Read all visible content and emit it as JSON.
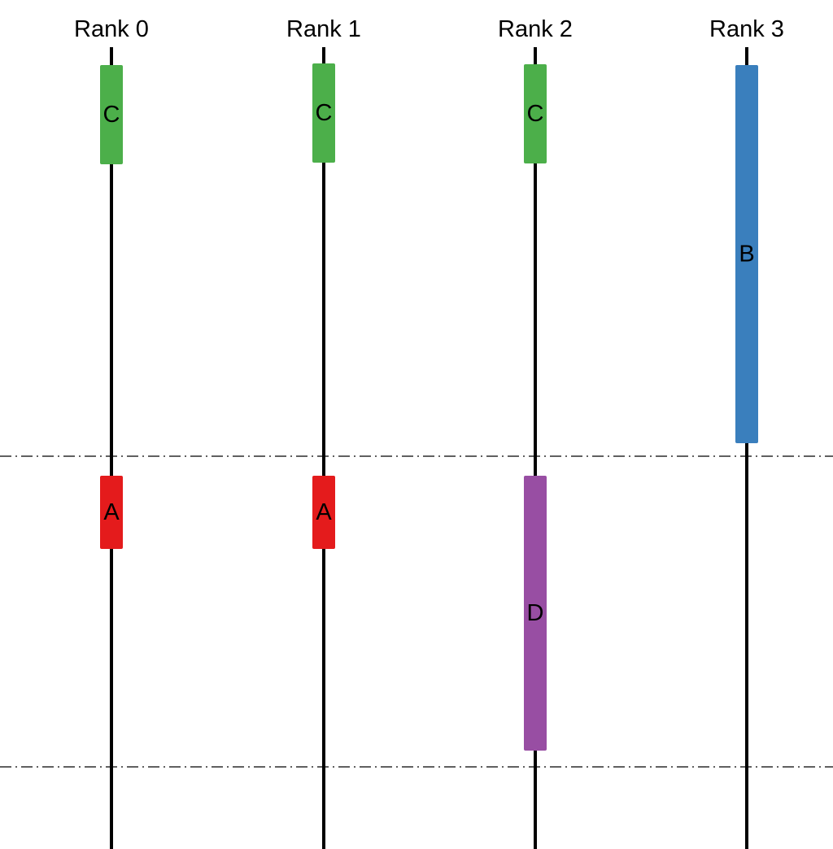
{
  "ranks": [
    {
      "label": "Rank 0"
    },
    {
      "label": "Rank 1"
    },
    {
      "label": "Rank 2"
    },
    {
      "label": "Rank 3"
    }
  ],
  "colors": {
    "C": "#4caf4a",
    "B": "#3a7fbd",
    "A": "#e41b1c",
    "D": "#984ea3"
  },
  "blocks": [
    {
      "rank": 0,
      "label": "C",
      "color_key": "C"
    },
    {
      "rank": 1,
      "label": "C",
      "color_key": "C"
    },
    {
      "rank": 2,
      "label": "C",
      "color_key": "C"
    },
    {
      "rank": 3,
      "label": "B",
      "color_key": "B"
    },
    {
      "rank": 0,
      "label": "A",
      "color_key": "A"
    },
    {
      "rank": 1,
      "label": "A",
      "color_key": "A"
    },
    {
      "rank": 2,
      "label": "D",
      "color_key": "D"
    }
  ]
}
